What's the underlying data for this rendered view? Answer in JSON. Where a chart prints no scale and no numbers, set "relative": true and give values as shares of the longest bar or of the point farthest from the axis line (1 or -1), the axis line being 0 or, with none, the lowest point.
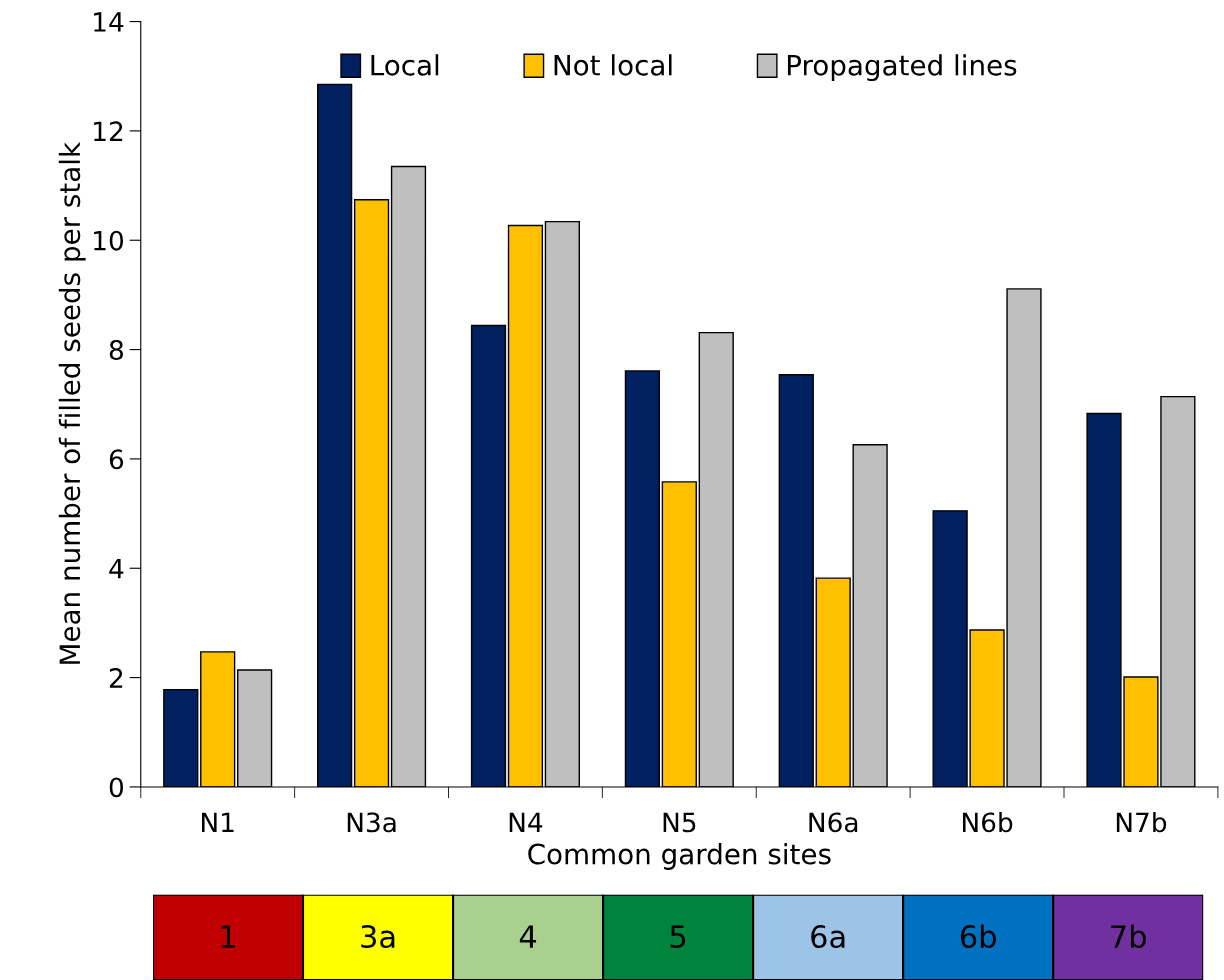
{
  "chart_data": [
    {
      "type": "bar",
      "xlabel": "Common garden sites",
      "ylabel": "Mean number of filled seeds per stalk",
      "categories": [
        "N1",
        "N3a",
        "N4",
        "N5",
        "N6a",
        "N6b",
        "N7b"
      ],
      "series": [
        {
          "name": "Local",
          "color": "#002060",
          "values": [
            1.78,
            12.85,
            8.44,
            7.61,
            7.54,
            5.05,
            6.83
          ]
        },
        {
          "name": "Not local",
          "color": "#ffc000",
          "values": [
            2.47,
            10.74,
            10.27,
            5.58,
            3.82,
            2.87,
            2.01
          ]
        },
        {
          "name": "Propagated lines",
          "color": "#bfbfbf",
          "values": [
            2.14,
            11.35,
            10.34,
            8.31,
            6.26,
            9.11,
            7.14
          ]
        }
      ],
      "ylim": [
        0,
        14
      ],
      "yticks": [
        0,
        2,
        4,
        6,
        8,
        10,
        12,
        14
      ],
      "grid": false,
      "legend": "top"
    },
    {
      "type": "bar",
      "relative": true,
      "categories": [
        "1",
        "3a",
        "4",
        "5",
        "6a",
        "6b",
        "7b"
      ],
      "values": [
        1,
        1,
        1,
        1,
        1,
        1,
        1
      ],
      "colors": [
        "#c00000",
        "#ffff00",
        "#a9d08e",
        "#00843d",
        "#9dc3e6",
        "#0070c0",
        "#7030a0"
      ]
    }
  ]
}
